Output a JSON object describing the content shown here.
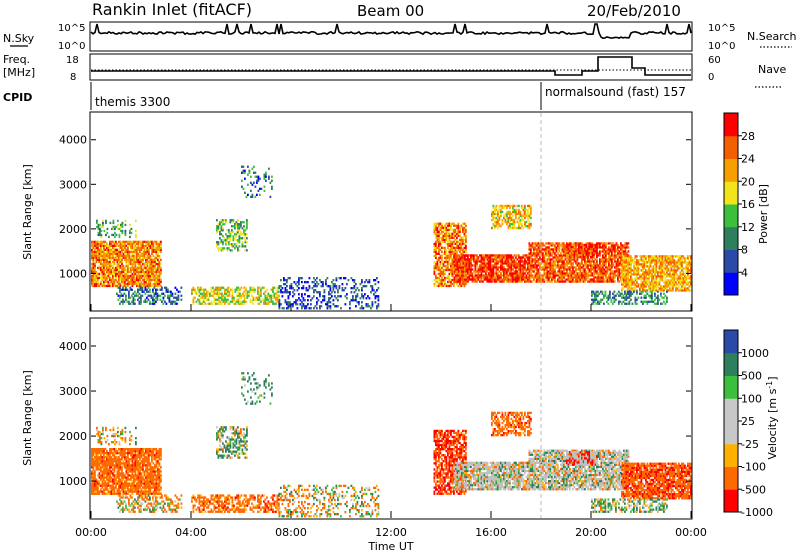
{
  "header": {
    "station": "Rankin Inlet (fitACF)",
    "beam": "Beam 00",
    "date": "20/Feb/2010"
  },
  "panels": {
    "nsky_label": "N.Sky",
    "nsearch_label": "N.Search",
    "freq_label_1": "Freq.",
    "freq_label_2": "[MHz]",
    "nave_label": "Nave",
    "cpid_label": "CPID",
    "cpid_segments": [
      "themis 3300",
      "normalsound (fast) 157"
    ],
    "noise_ticks": [
      "10^5",
      "10^0"
    ],
    "freq_ticks": [
      "18",
      "8"
    ],
    "nave_ticks": [
      "60",
      "0"
    ]
  },
  "colors": {
    "power_scale": [
      "#0000ff",
      "#2b4aa8",
      "#2e7f5e",
      "#3cbf3c",
      "#f2e41a",
      "#f5a000",
      "#f26000",
      "#ff0000"
    ],
    "velocity_scale": [
      "#ff0000",
      "#ff6a00",
      "#ffb000",
      "#c8c8c8",
      "#c8c8c8",
      "#3cbf3c",
      "#2e7f5e",
      "#2b4aa8"
    ],
    "ground_scatter": "#c0c0c0"
  },
  "chart_data": [
    {
      "type": "heatmap",
      "panel": "power",
      "ylabel": "Slant Range [km]",
      "y_ticks": [
        1000,
        2000,
        3000,
        4000
      ],
      "ylim": [
        180,
        4600
      ],
      "colorbar_label": "Power [dB]",
      "colorbar_ticks": [
        4,
        8,
        12,
        16,
        20,
        24,
        28
      ],
      "colorbar_range": [
        0,
        32
      ]
    },
    {
      "type": "heatmap",
      "panel": "velocity",
      "ylabel": "Slant Range [km]",
      "y_ticks": [
        1000,
        2000,
        3000,
        4000
      ],
      "ylim": [
        180,
        4600
      ],
      "colorbar_label": "Velocity [m s^-1]",
      "colorbar_ticks": [
        1000,
        500,
        100,
        25,
        -25,
        -100,
        -500,
        -1000
      ]
    }
  ],
  "xaxis": {
    "label": "Time UT",
    "ticks": [
      "00:00",
      "04:00",
      "08:00",
      "12:00",
      "16:00",
      "20:00",
      "00:00"
    ],
    "range_hours": [
      0,
      24
    ]
  },
  "mode_change_hour": 18.0,
  "echo_regions": [
    {
      "t": [
        0.0,
        2.8
      ],
      "r": [
        700,
        1700
      ],
      "p": 24,
      "v": -300,
      "d": 0.85
    },
    {
      "t": [
        0.2,
        1.8
      ],
      "r": [
        1800,
        2200
      ],
      "p": 12,
      "v": -100,
      "d": 0.35
    },
    {
      "t": [
        1.0,
        3.6
      ],
      "r": [
        300,
        700
      ],
      "p": 8,
      "v": -100,
      "d": 0.45
    },
    {
      "t": [
        5.0,
        6.2
      ],
      "r": [
        1500,
        2200
      ],
      "p": 14,
      "v": 100,
      "d": 0.5
    },
    {
      "t": [
        4.0,
        7.5
      ],
      "r": [
        300,
        700
      ],
      "p": 18,
      "v": -300,
      "d": 0.55
    },
    {
      "t": [
        6.0,
        7.2
      ],
      "r": [
        2700,
        3400
      ],
      "p": 8,
      "v": 200,
      "d": 0.2
    },
    {
      "t": [
        7.5,
        11.5
      ],
      "r": [
        200,
        900
      ],
      "p": 6,
      "v": -50,
      "d": 0.3
    },
    {
      "t": [
        13.7,
        15.0
      ],
      "r": [
        700,
        2100
      ],
      "p": 24,
      "v": -500,
      "d": 0.7
    },
    {
      "t": [
        14.5,
        17.5
      ],
      "r": [
        800,
        1400
      ],
      "p": 28,
      "v": 0,
      "d": 0.85
    },
    {
      "t": [
        16.0,
        17.6
      ],
      "r": [
        2000,
        2500
      ],
      "p": 20,
      "v": -300,
      "d": 0.6
    },
    {
      "t": [
        17.5,
        21.5
      ],
      "r": [
        800,
        1700
      ],
      "p": 26,
      "v": 0,
      "d": 0.8
    },
    {
      "t": [
        19.0,
        20.2
      ],
      "r": [
        1350,
        1650
      ],
      "p": 28,
      "v": -600,
      "d": 0.85
    },
    {
      "t": [
        21.2,
        24.0
      ],
      "r": [
        600,
        1400
      ],
      "p": 22,
      "v": -400,
      "d": 0.8
    },
    {
      "t": [
        20.0,
        23.0
      ],
      "r": [
        300,
        600
      ],
      "p": 10,
      "v": 100,
      "d": 0.45
    }
  ]
}
